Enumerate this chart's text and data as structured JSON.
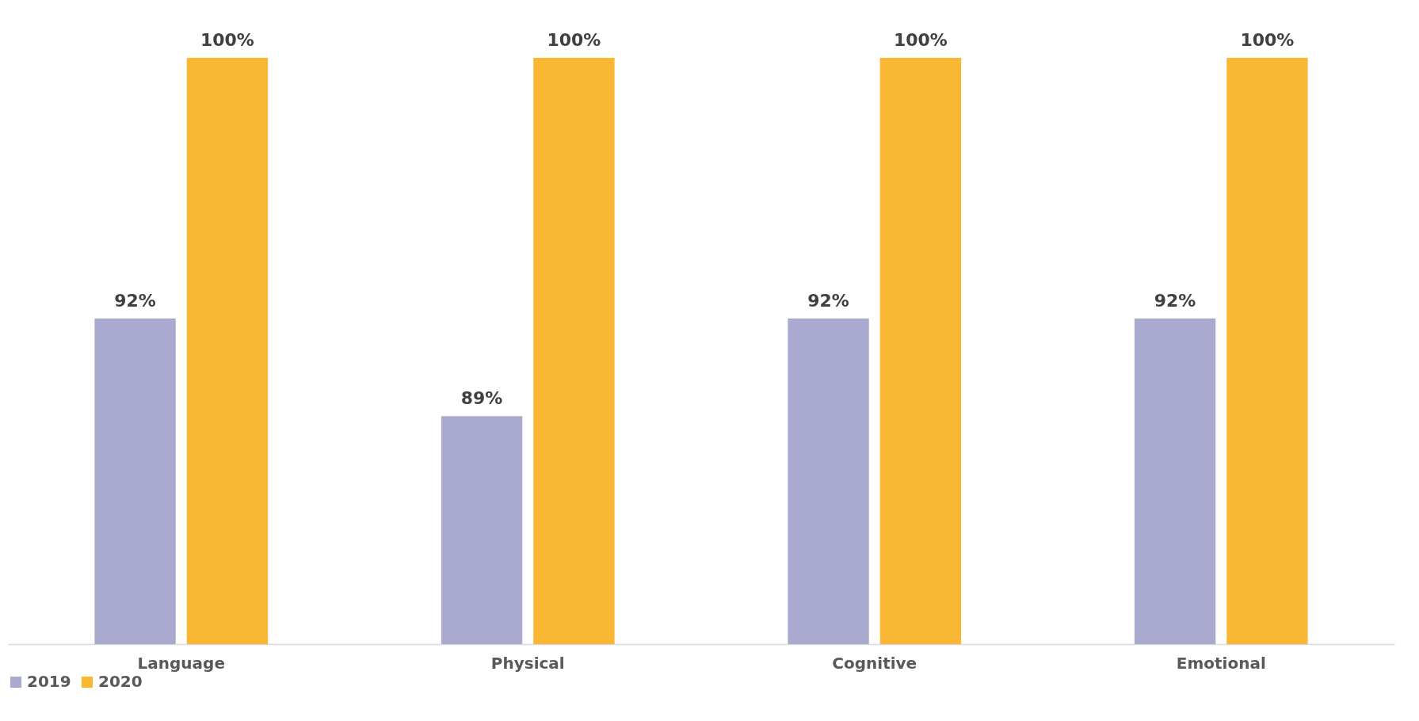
{
  "chart_data": {
    "type": "bar",
    "categories": [
      "Language",
      "Physical",
      "Cognitive",
      "Emotional"
    ],
    "series": [
      {
        "name": "2019",
        "color": "#aaaad0",
        "values": [
          92,
          89,
          92,
          92
        ],
        "value_labels": [
          "92%",
          "89%",
          "92%",
          "92%"
        ]
      },
      {
        "name": "2020",
        "color": "#fab733",
        "values": [
          100,
          100,
          100,
          100
        ],
        "value_labels": [
          "100%",
          "100%",
          "100%",
          "100%"
        ]
      }
    ],
    "ylim": [
      82,
      100
    ],
    "tick_labels": "x",
    "legend": "bottom",
    "grid": false
  }
}
